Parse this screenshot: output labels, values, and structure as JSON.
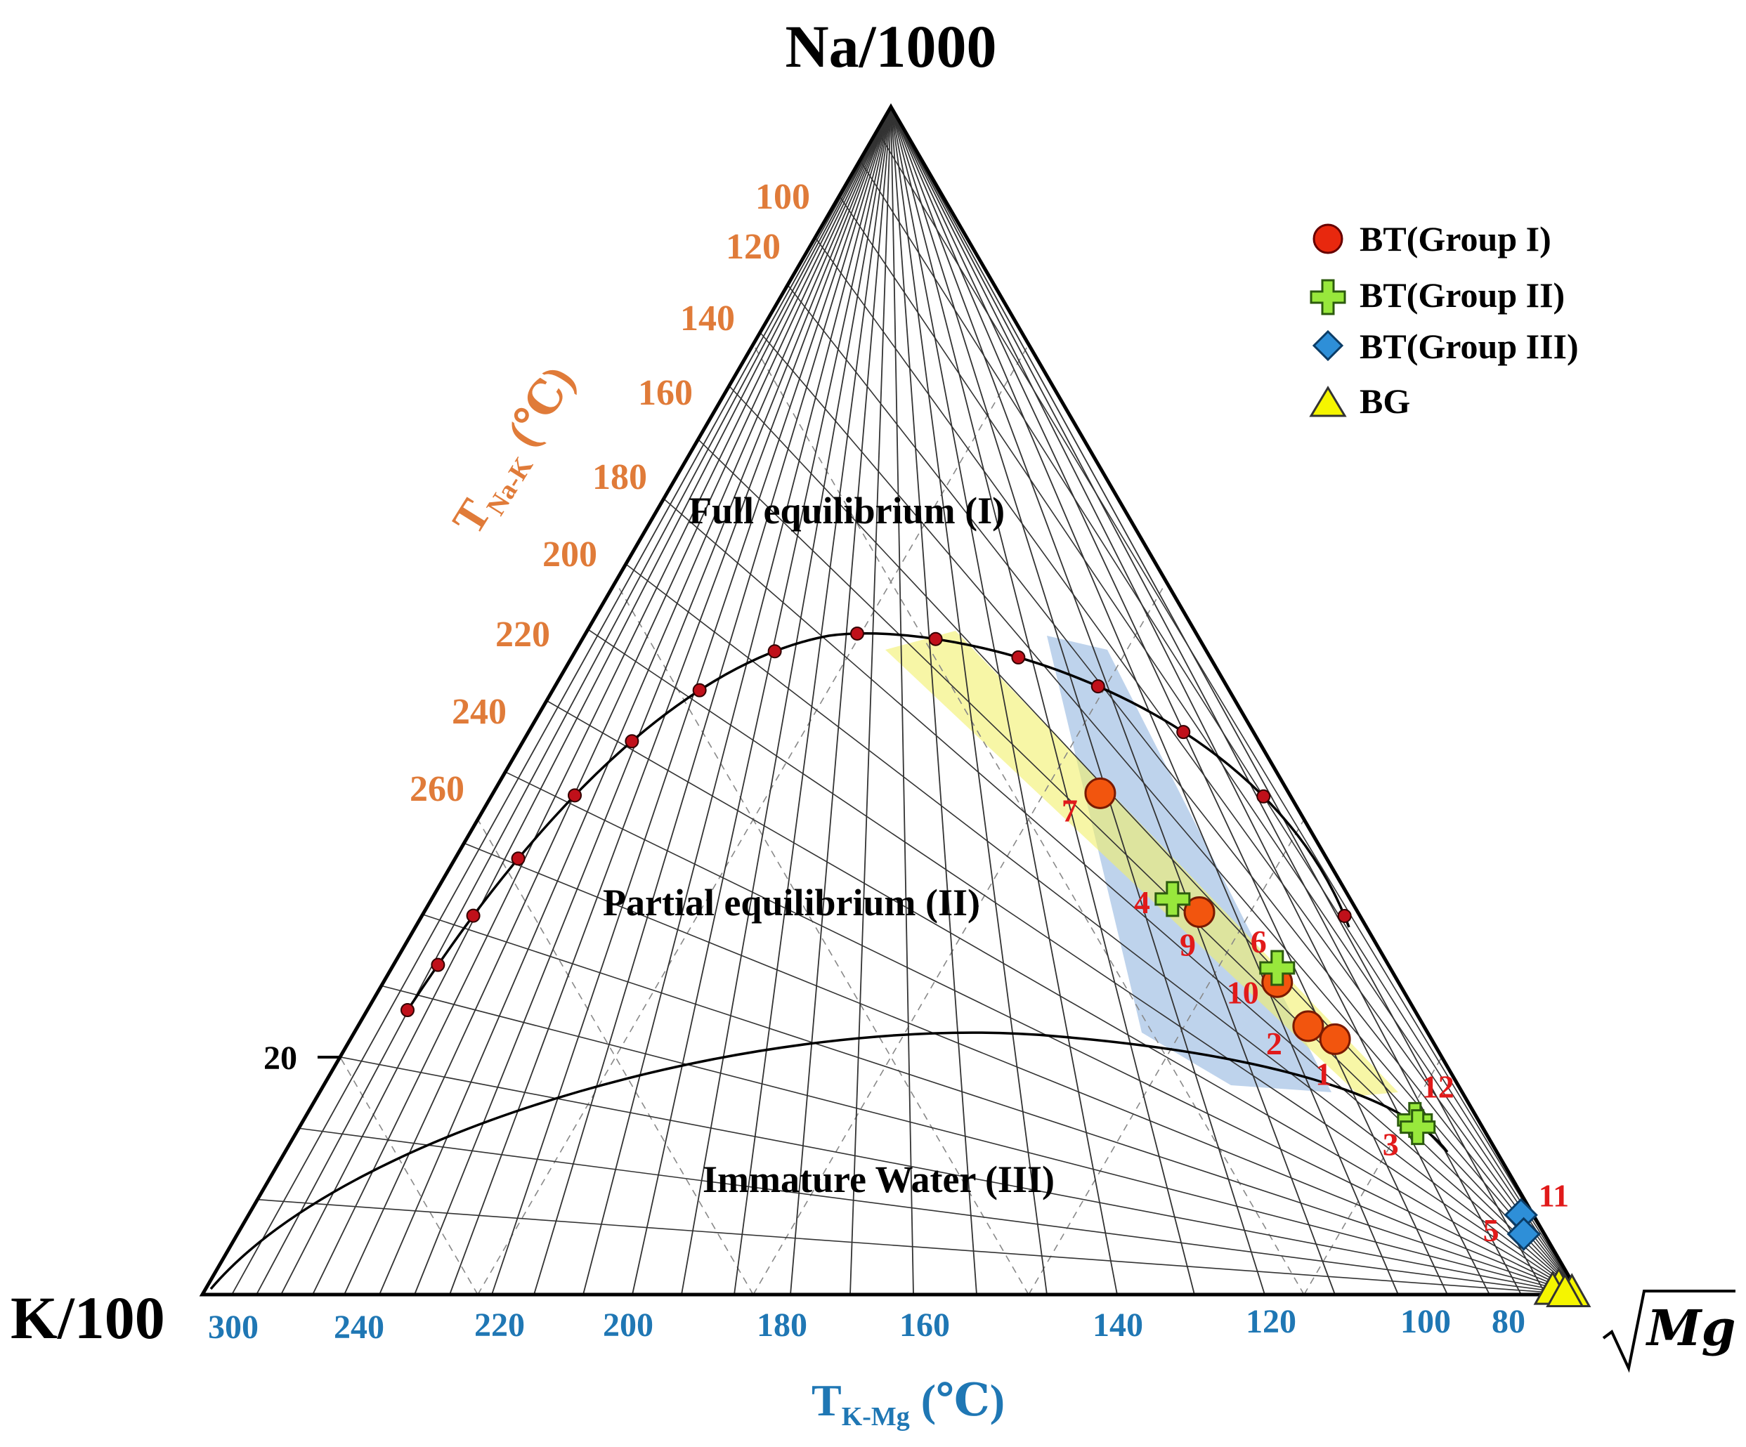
{
  "chart_data": {
    "type": "ternary",
    "title": "",
    "vertices": {
      "top": "Na/1000",
      "left": "K/100",
      "right": "Mg"
    },
    "na_k_axis": {
      "label_main": "T",
      "label_sub": "Na-K",
      "label_unit": " (℃)",
      "ticks": [
        "100",
        "120",
        "140",
        "160",
        "180",
        "200",
        "220",
        "240",
        "260"
      ],
      "color": "#E07B39"
    },
    "k_mg_axis": {
      "label_main": "T",
      "label_sub": "K-Mg",
      "label_unit": " (℃)",
      "ticks": [
        "300",
        "240",
        "220",
        "200",
        "180",
        "160",
        "140",
        "120",
        "100",
        "80"
      ],
      "color": "#1F77B4"
    },
    "left_edge_tick": "20",
    "regions": [
      "Full equilibrium (I)",
      "Partial equilibrium (II)",
      "Immature Water (III)"
    ],
    "legend": [
      {
        "name": "BT(Group I)",
        "marker": "circle",
        "color": "#E8280E"
      },
      {
        "name": "BT(Group II)",
        "marker": "plus",
        "color": "#98E83C"
      },
      {
        "name": "BT(Group III)",
        "marker": "diamond",
        "color": "#2E8FD8"
      },
      {
        "name": "BG",
        "marker": "triangle",
        "color": "#F5F500"
      }
    ],
    "samples": [
      {
        "label": "1",
        "group": "BT(Group I)",
        "na": 21.5,
        "k": 7.0,
        "mg": 71.5
      },
      {
        "label": "2",
        "group": "BT(Group I)",
        "na": 22.6,
        "k": 8.4,
        "mg": 69.0
      },
      {
        "label": "10",
        "group": "BT(Group I)",
        "na": 26.3,
        "k": 8.8,
        "mg": 64.9
      },
      {
        "label": "9",
        "group": "BT(Group I)",
        "na": 32.2,
        "k": 11.5,
        "mg": 56.3
      },
      {
        "label": "7",
        "group": "BT(Group I)",
        "na": 42.2,
        "k": 13.7,
        "mg": 44.1
      },
      {
        "label": "4",
        "group": "BT(Group II)",
        "na": 33.3,
        "k": 12.9,
        "mg": 53.8
      },
      {
        "label": "6",
        "group": "BT(Group II)",
        "na": 27.5,
        "k": 8.2,
        "mg": 64.3
      },
      {
        "label": "12",
        "group": "BT(Group II)",
        "na": 14.7,
        "k": 4.6,
        "mg": 80.7
      },
      {
        "label": "3",
        "group": "BT(Group II)",
        "na": 14.1,
        "k": 4.7,
        "mg": 81.2
      },
      {
        "label": "11",
        "group": "BT(Group III)",
        "na": 6.7,
        "k": 0.9,
        "mg": 92.4
      },
      {
        "label": "5",
        "group": "BT(Group III)",
        "na": 5.1,
        "k": 1.5,
        "mg": 93.4
      },
      {
        "label": "",
        "group": "BG",
        "na": 0.6,
        "k": 1.2,
        "mg": 98.2
      },
      {
        "label": "",
        "group": "BG",
        "na": 0.1,
        "k": 0.5,
        "mg": 99.4
      },
      {
        "label": "",
        "group": "BG",
        "na": 0.3,
        "k": 1.8,
        "mg": 97.9
      },
      {
        "label": "",
        "group": "BG",
        "na": 0.1,
        "k": 1.0,
        "mg": 98.9
      }
    ]
  }
}
